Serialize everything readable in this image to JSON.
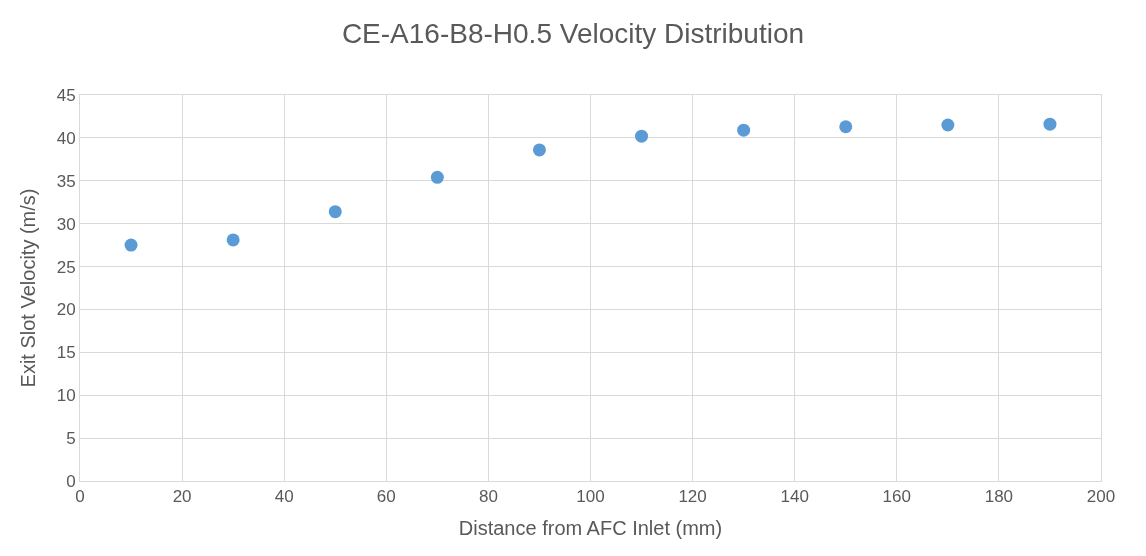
{
  "chart_data": {
    "type": "scatter",
    "title": "CE-A16-B8-H0.5 Velocity Distribution",
    "xlabel": "Distance from AFC Inlet (mm)",
    "ylabel": "Exit Slot Velocity (m/s)",
    "x": [
      10,
      30,
      50,
      70,
      90,
      110,
      130,
      150,
      170,
      190
    ],
    "series": [
      {
        "color": "#5b9bd5",
        "values": [
          27.5,
          28.1,
          31.4,
          35.4,
          38.6,
          40.2,
          40.9,
          41.3,
          41.5,
          41.6
        ]
      }
    ],
    "xlim": [
      0,
      200
    ],
    "xticks": [
      0,
      20,
      40,
      60,
      80,
      100,
      120,
      140,
      160,
      180,
      200
    ],
    "ylim": [
      0,
      45
    ],
    "yticks": [
      0,
      5,
      10,
      15,
      20,
      25,
      30,
      35,
      40,
      45
    ],
    "grid": true,
    "marker": "circle"
  }
}
